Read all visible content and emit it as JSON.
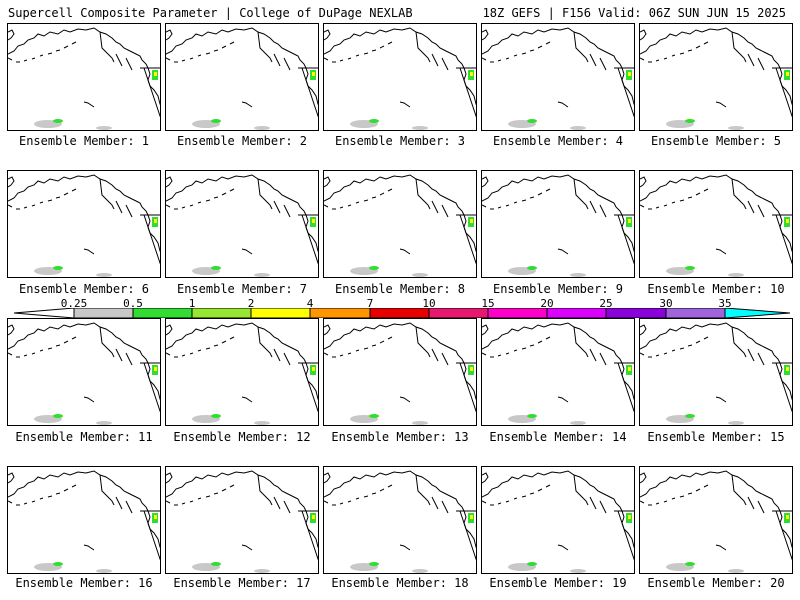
{
  "header": {
    "left_title": "Supercell Composite Parameter | College of DuPage NEXLAB",
    "right_title": "18Z GEFS | F156 Valid: 06Z SUN JUN 15 2025"
  },
  "members": [
    {
      "label": "Ensemble Member: 1"
    },
    {
      "label": "Ensemble Member: 2"
    },
    {
      "label": "Ensemble Member: 3"
    },
    {
      "label": "Ensemble Member: 4"
    },
    {
      "label": "Ensemble Member: 5"
    },
    {
      "label": "Ensemble Member: 6"
    },
    {
      "label": "Ensemble Member: 7"
    },
    {
      "label": "Ensemble Member: 8"
    },
    {
      "label": "Ensemble Member: 9"
    },
    {
      "label": "Ensemble Member: 10"
    },
    {
      "label": "Ensemble Member: 11"
    },
    {
      "label": "Ensemble Member: 12"
    },
    {
      "label": "Ensemble Member: 13"
    },
    {
      "label": "Ensemble Member: 14"
    },
    {
      "label": "Ensemble Member: 15"
    },
    {
      "label": "Ensemble Member: 16"
    },
    {
      "label": "Ensemble Member: 17"
    },
    {
      "label": "Ensemble Member: 18"
    },
    {
      "label": "Ensemble Member: 19"
    },
    {
      "label": "Ensemble Member: 20"
    }
  ],
  "colorbar": {
    "ticks": [
      "0.25",
      "0.5",
      "1",
      "2",
      "4",
      "7",
      "10",
      "15",
      "20",
      "25",
      "30",
      "35"
    ],
    "colors": [
      "#c8c8c8",
      "#32dc32",
      "#96e632",
      "#ffff00",
      "#ff9600",
      "#e60000",
      "#e6196e",
      "#ff00c8",
      "#dc00ff",
      "#8c00dc",
      "#a064dc",
      "#00ffff"
    ]
  }
}
